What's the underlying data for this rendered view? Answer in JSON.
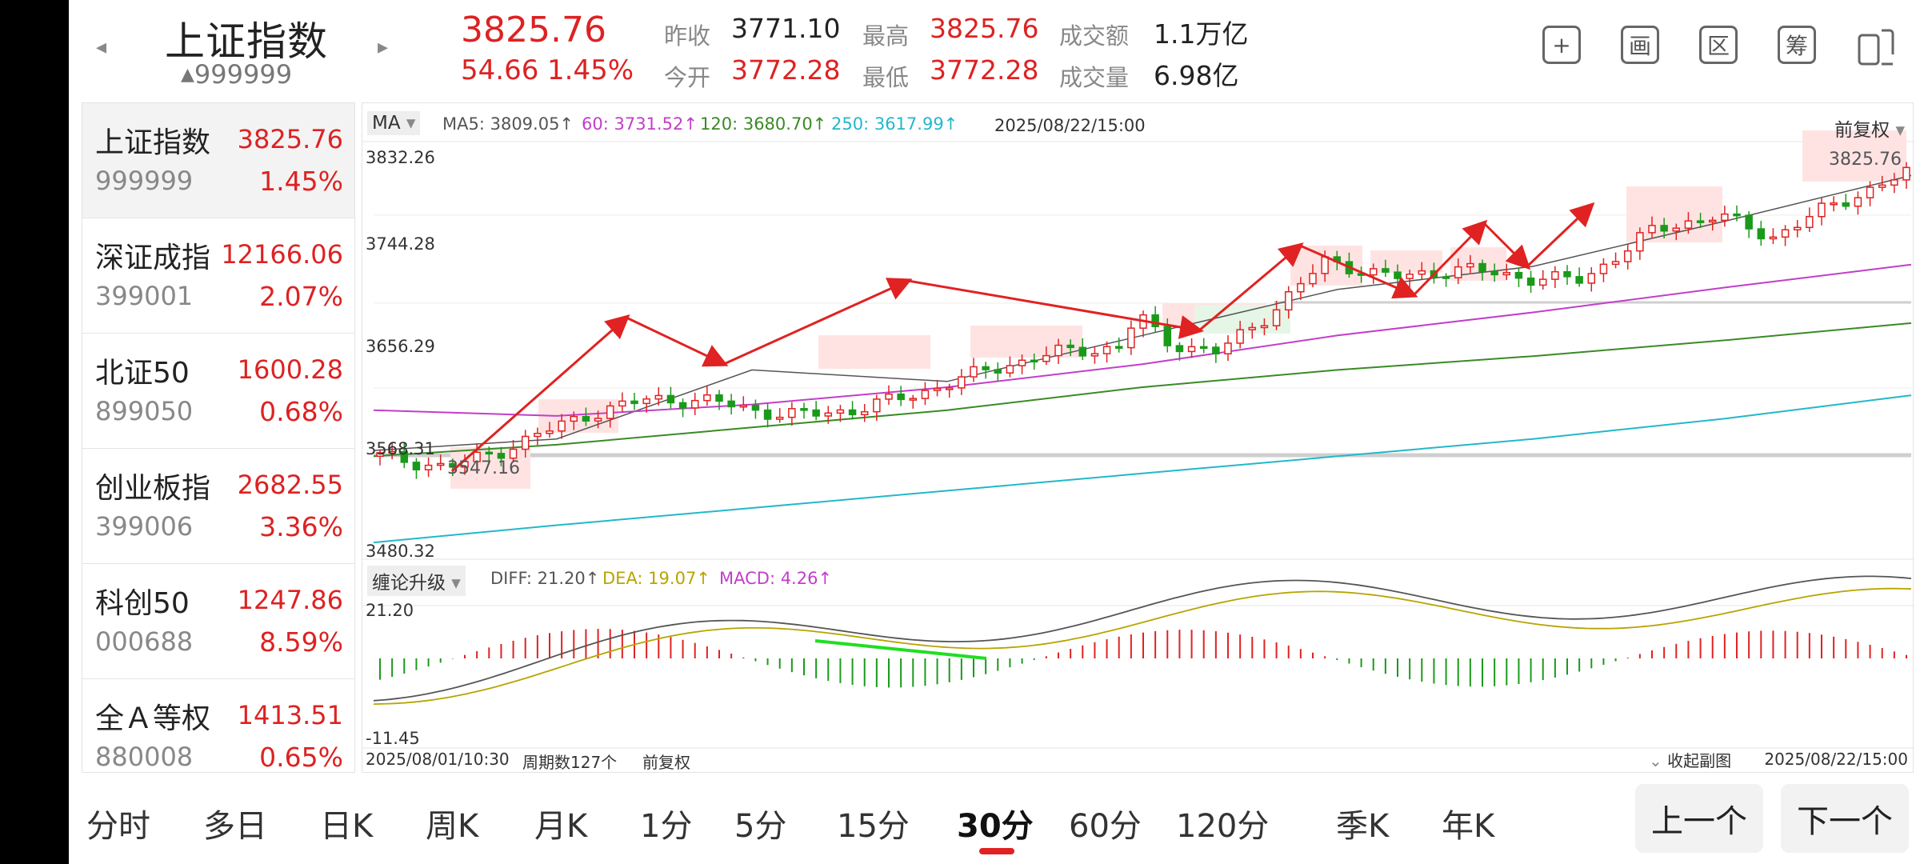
{
  "header": {
    "name": "上证指数",
    "code": "999999",
    "price": "3825.76",
    "change": "54.66",
    "change_pct": "1.45%",
    "prev_close_label": "昨收",
    "prev_close": "3771.10",
    "open_label": "今开",
    "open": "3772.28",
    "high_label": "最高",
    "high": "3825.76",
    "low_label": "最低",
    "low": "3772.28",
    "turnover_label": "成交额",
    "turnover": "1.1万亿",
    "volume_label": "成交量",
    "volume": "6.98亿",
    "tools": [
      "+",
      "画",
      "区",
      "筹"
    ],
    "tool_icons": [
      "plus-icon",
      "draw-icon",
      "range-icon",
      "chips-icon",
      "rotate-screen-icon"
    ]
  },
  "index_list": [
    {
      "name": "上证指数",
      "code": "999999",
      "price": "3825.76",
      "pct": "1.45%"
    },
    {
      "name": "深证成指",
      "code": "399001",
      "price": "12166.06",
      "pct": "2.07%"
    },
    {
      "name": "北证50",
      "code": "899050",
      "price": "1600.28",
      "pct": "0.68%"
    },
    {
      "name": "创业板指",
      "code": "399006",
      "price": "2682.55",
      "pct": "3.36%"
    },
    {
      "name": "科创50",
      "code": "000688",
      "price": "1247.86",
      "pct": "8.59%"
    },
    {
      "name": "全Ａ等权",
      "code": "880008",
      "price": "1413.51",
      "pct": "0.65%"
    }
  ],
  "chart": {
    "indicator_label": "MA",
    "ma5": "MA5: 3809.05↑",
    "ma60": "60: 3731.52↑",
    "ma120": "120: 3680.70↑",
    "ma250": "250: 3617.99↑",
    "datetime": "2025/08/22/15:00",
    "adjust_label": "前复权",
    "y_ticks": [
      "3832.26",
      "3744.28",
      "3656.29",
      "3568.31",
      "3480.32"
    ],
    "y_tick_values": [
      3832.26,
      3744.28,
      3656.29,
      3568.31,
      3480.32
    ],
    "max_label": "3825.76",
    "min_label": "3547.16",
    "sub_indicator_label": "缠论升级",
    "diff": "DIFF: 21.20↑",
    "dea": "DEA: 19.07↑",
    "macd": "MACD: 4.26↑",
    "sub_top": "21.20",
    "sub_bottom": "-11.45",
    "start_date": "2025/08/01/10:30",
    "period_count": "周期数127个",
    "footer_adjust": "前复权",
    "collapse_label": "收起副图",
    "end_date": "2025/08/22/15:00",
    "colors": {
      "up": "#e02222",
      "down": "#1a9a1a",
      "ma5": "#555555",
      "ma60": "#c23ec9",
      "ma120": "#3a8a25",
      "ma250": "#22b8c9",
      "dea": "#b8a400"
    }
  },
  "chart_data": {
    "type": "line",
    "title": "",
    "x": [
      1,
      16,
      32,
      48,
      64,
      80,
      96,
      112,
      127
    ],
    "series": [
      {
        "name": "MA5",
        "values": [
          3570,
          3580,
          3640,
          3630,
          3670,
          3710,
          3730,
          3770,
          3809.05
        ]
      },
      {
        "name": "60",
        "values": [
          3605,
          3600,
          3610,
          3625,
          3645,
          3670,
          3690,
          3712,
          3731.52
        ]
      },
      {
        "name": "120",
        "values": [
          3565,
          3575,
          3590,
          3605,
          3625,
          3640,
          3652,
          3666,
          3680.7
        ]
      },
      {
        "name": "250",
        "values": [
          3490,
          3505,
          3520,
          3535,
          3550,
          3565,
          3580,
          3598,
          3617.99
        ]
      }
    ],
    "ylim": [
      3480.32,
      3832.26
    ]
  },
  "periods": [
    "分时",
    "多日",
    "日K",
    "周K",
    "月K",
    "1分",
    "5分",
    "15分",
    "30分",
    "60分",
    "120分",
    "季K",
    "年K"
  ],
  "active_period": "30分",
  "nav": {
    "prev": "上一个",
    "next": "下一个"
  }
}
